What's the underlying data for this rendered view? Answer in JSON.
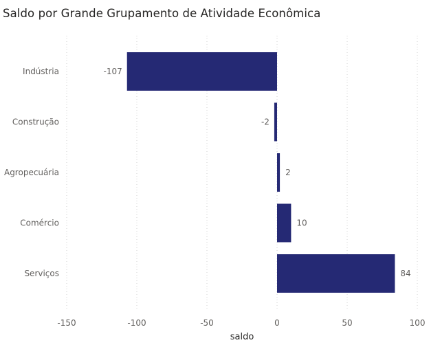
{
  "chart_data": {
    "type": "bar",
    "orientation": "horizontal",
    "title": "Saldo por Grande Grupamento de Atividade Econômica",
    "xlabel": "saldo",
    "ylabel": "",
    "categories": [
      "Indústria",
      "Construção",
      "Agropecuária",
      "Comércio",
      "Serviços"
    ],
    "values": [
      -107,
      -2,
      2,
      10,
      84
    ],
    "data_labels": [
      "-107",
      "-2",
      "2",
      "10",
      "84"
    ],
    "xlim": [
      -150,
      100
    ],
    "x_ticks": [
      -150,
      -100,
      -50,
      0,
      50,
      100
    ],
    "x_tick_labels": [
      "-150",
      "-100",
      "-50",
      "0",
      "50",
      "100"
    ],
    "grid": true,
    "colors": {
      "bar": "#252974"
    }
  }
}
